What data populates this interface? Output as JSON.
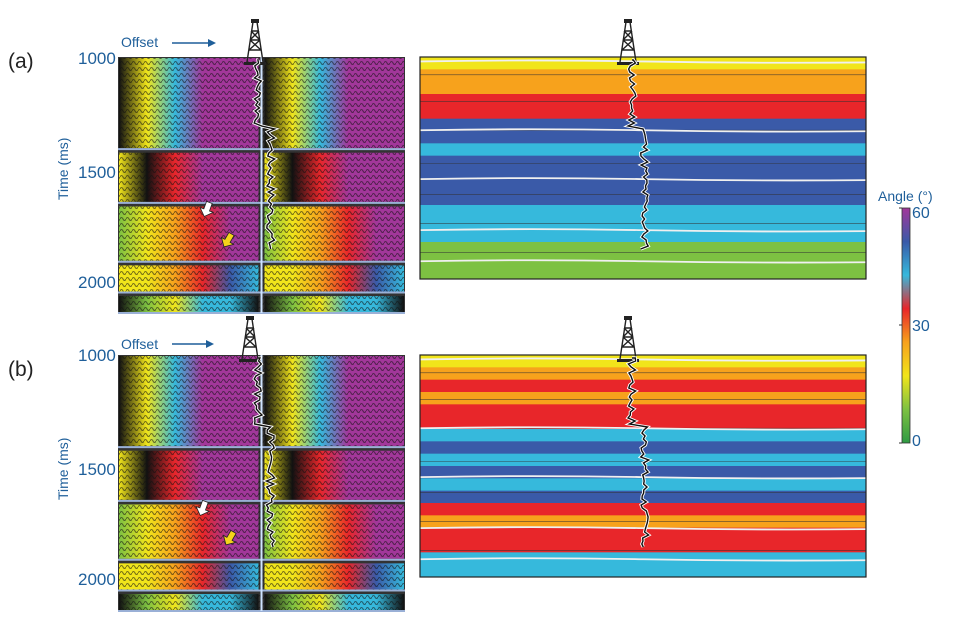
{
  "figure": {
    "colors": {
      "text_blue": "#1f5f9a",
      "colorbar_stops": [
        "#2e9a43",
        "#7dc142",
        "#f1e51b",
        "#f7a21c",
        "#e8262a",
        "#36b9dc",
        "#3a5aa8",
        "#a2379a"
      ]
    },
    "icons": [
      "drilling-rig-icon",
      "arrow-right-icon",
      "white-arrow-icon",
      "yellow-arrow-icon"
    ],
    "panels": [
      {
        "label": "(a)",
        "offset_label": "Offset",
        "time_axis_title": "Time (ms)",
        "time_ticks": [
          "1000",
          "1500",
          "2000"
        ]
      },
      {
        "label": "(b)",
        "offset_label": "Offset",
        "time_axis_title": "Time (ms)",
        "time_ticks": [
          "1000",
          "1500",
          "2000"
        ]
      }
    ],
    "colorbar": {
      "title": "Angle (°)",
      "ticks": [
        "60",
        "30",
        "0"
      ]
    }
  }
}
